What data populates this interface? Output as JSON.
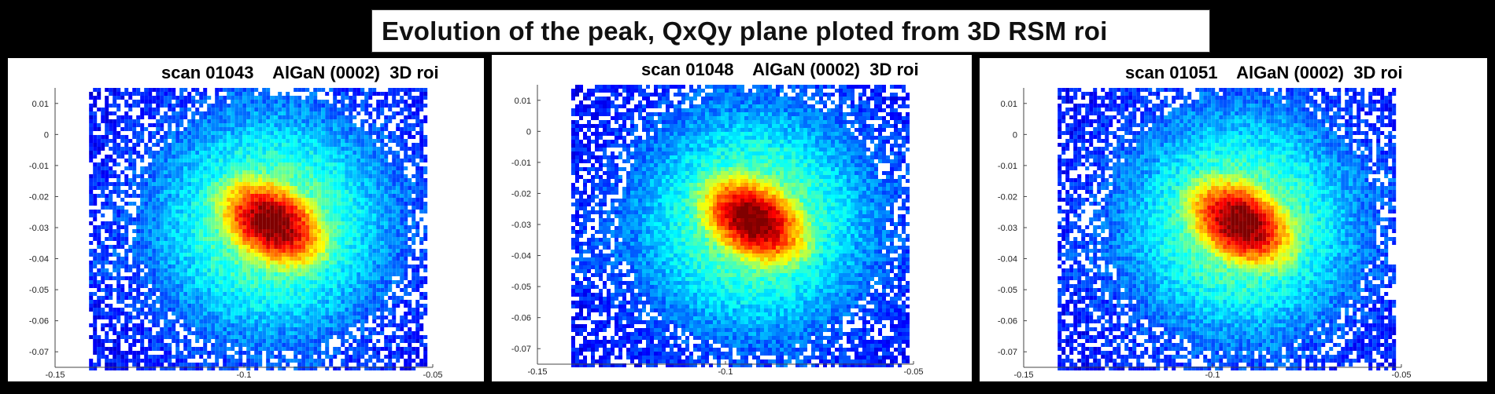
{
  "slide_title": "Evolution of the peak, QxQy plane ploted from 3D RSM roi",
  "chart_data": [
    {
      "type": "heatmap",
      "title": "scan 01043    AlGaN (0002)  3D roi",
      "xlim": [
        -0.15,
        -0.05
      ],
      "ylim": [
        -0.075,
        0.015
      ],
      "xticks": [
        -0.15,
        -0.1,
        -0.05
      ],
      "xtick_labels": [
        "-0.15",
        "-0.1",
        "-0.05"
      ],
      "yticks": [
        0.01,
        0,
        -0.01,
        -0.02,
        -0.03,
        -0.04,
        -0.05,
        -0.06,
        -0.07
      ],
      "ytick_labels": [
        "0.01",
        "0",
        "-0.01",
        "-0.02",
        "-0.03",
        "-0.04",
        "-0.05",
        "-0.06",
        "-0.07"
      ],
      "data_xrange": [
        -0.141,
        -0.052
      ],
      "peak_center": {
        "x": -0.093,
        "y": -0.028
      },
      "colormap": "jet"
    },
    {
      "type": "heatmap",
      "title": "scan 01048    AlGaN (0002)  3D roi",
      "xlim": [
        -0.15,
        -0.05
      ],
      "ylim": [
        -0.075,
        0.015
      ],
      "xticks": [
        -0.15,
        -0.1,
        -0.05
      ],
      "xtick_labels": [
        "-0.15",
        "-0.1",
        "-0.05"
      ],
      "yticks": [
        0.01,
        0,
        -0.01,
        -0.02,
        -0.03,
        -0.04,
        -0.05,
        -0.06,
        -0.07
      ],
      "ytick_labels": [
        "0.01",
        "0",
        "-0.01",
        "-0.02",
        "-0.03",
        "-0.04",
        "-0.05",
        "-0.06",
        "-0.07"
      ],
      "data_xrange": [
        -0.141,
        -0.052
      ],
      "peak_center": {
        "x": -0.093,
        "y": -0.028
      },
      "colormap": "jet"
    },
    {
      "type": "heatmap",
      "title": "scan 01051    AlGaN (0002)  3D roi",
      "xlim": [
        -0.15,
        -0.05
      ],
      "ylim": [
        -0.075,
        0.015
      ],
      "xticks": [
        -0.15,
        -0.1,
        -0.05
      ],
      "xtick_labels": [
        "-0.15",
        "-0.1",
        "-0.05"
      ],
      "yticks": [
        0.01,
        0,
        -0.01,
        -0.02,
        -0.03,
        -0.04,
        -0.05,
        -0.06,
        -0.07
      ],
      "ytick_labels": [
        "0.01",
        "0",
        "-0.01",
        "-0.02",
        "-0.03",
        "-0.04",
        "-0.05",
        "-0.06",
        "-0.07"
      ],
      "data_xrange": [
        -0.141,
        -0.052
      ],
      "peak_center": {
        "x": -0.093,
        "y": -0.028
      },
      "colormap": "jet"
    }
  ]
}
